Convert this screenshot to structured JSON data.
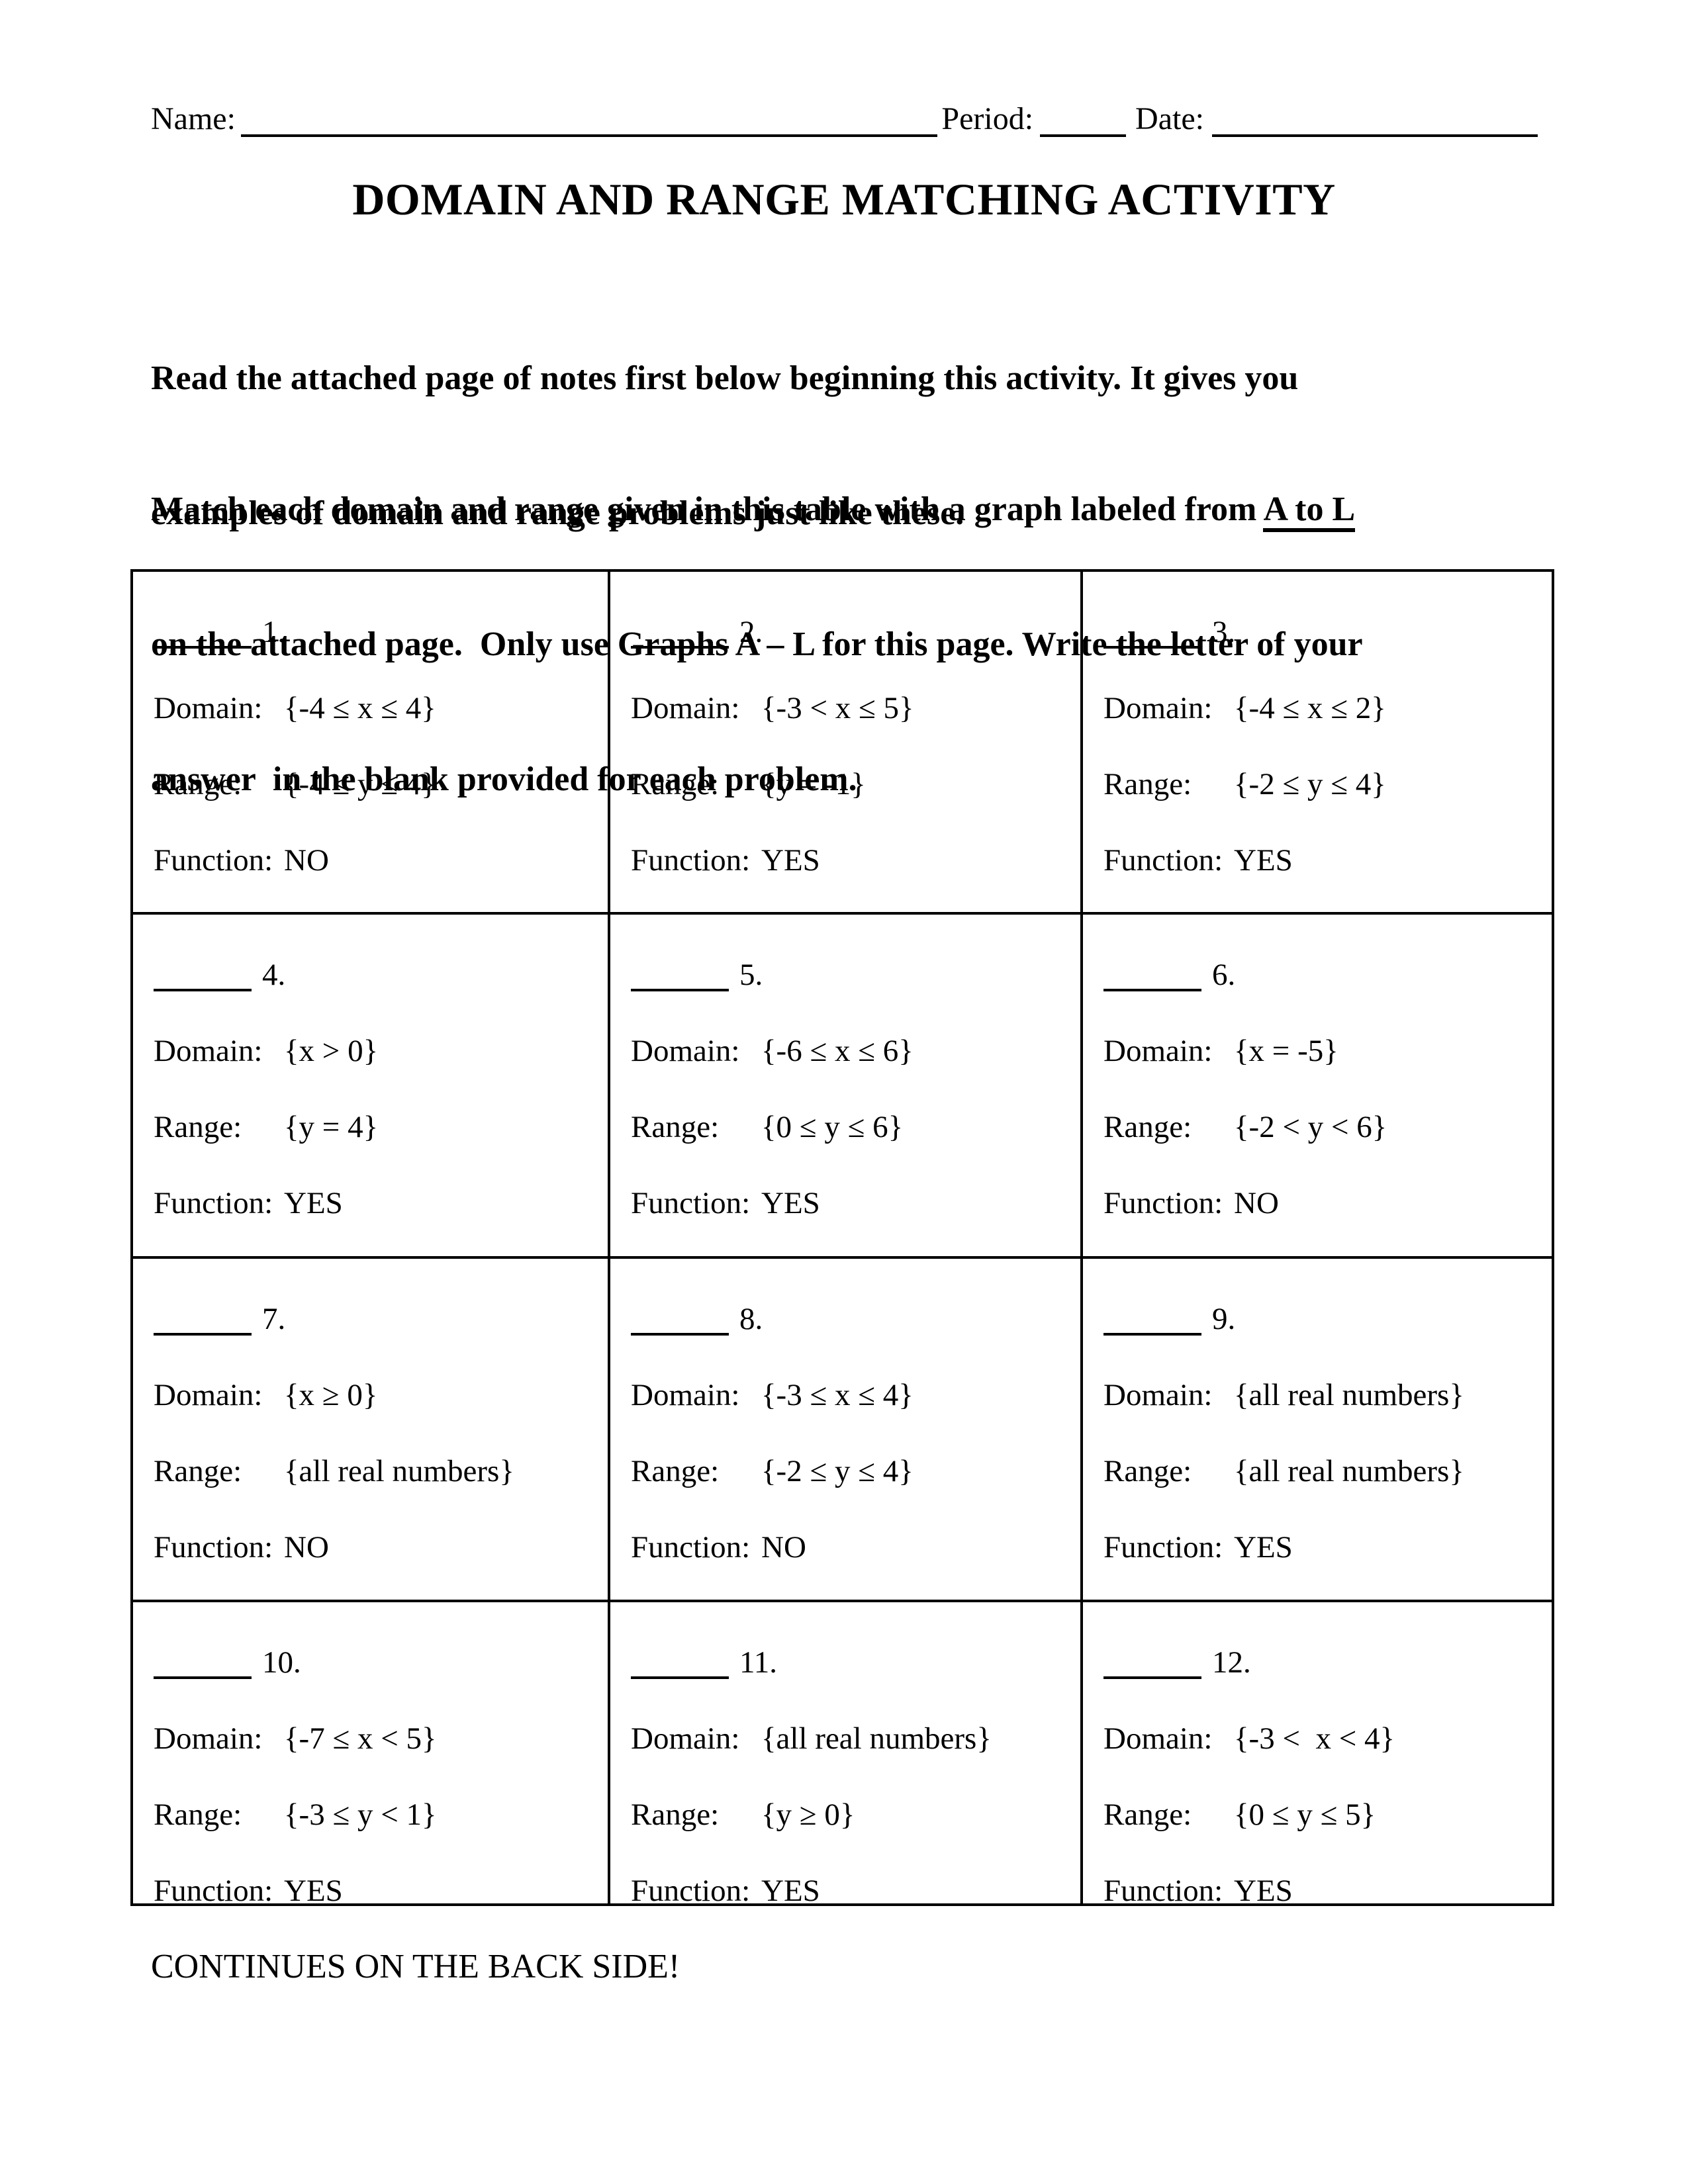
{
  "header": {
    "name_label": "Name:",
    "period_label": "Period:",
    "date_label": "Date:"
  },
  "title": "DOMAIN AND RANGE MATCHING ACTIVITY",
  "instructions": {
    "para1_lines": [
      "Read the attached page of notes first below beginning this activity. It gives you",
      "examples of domain and range problems just like these."
    ],
    "para2_line1_before": "Match each domain and range given in this table with a graph labeled from ",
    "para2_line1_underlined": "A to L",
    "para2_lines_rest": [
      "on the attached page.  Only use Graphs A – L for this page. Write the letter of your",
      "answer  in the blank provided for each problem."
    ]
  },
  "table": {
    "labels": {
      "domain": "Domain:",
      "range": "Range:",
      "function": "Function:"
    },
    "problems": [
      {
        "number": "1.",
        "domain": "{-4 ≤ x ≤ 4}",
        "range": "{-4 ≤ y ≤ 4}",
        "function": "NO"
      },
      {
        "number": "2.",
        "domain": "{-3 < x ≤ 5}",
        "range": "{y = -1}",
        "function": "YES"
      },
      {
        "number": "3.",
        "domain": "{-4 ≤ x ≤ 2}",
        "range": "{-2 ≤ y ≤ 4}",
        "function": "YES"
      },
      {
        "number": "4.",
        "domain": "{x > 0}",
        "range": "{y = 4}",
        "function": "YES"
      },
      {
        "number": "5.",
        "domain": "{-6 ≤ x ≤ 6}",
        "range": "{0 ≤ y ≤ 6}",
        "function": "YES"
      },
      {
        "number": "6.",
        "domain": "{x = -5}",
        "range": "{-2 < y < 6}",
        "function": "NO"
      },
      {
        "number": "7.",
        "domain": "{x ≥ 0}",
        "range": "{all real numbers}",
        "function": "NO"
      },
      {
        "number": "8.",
        "domain": "{-3 ≤ x ≤ 4}",
        "range": "{-2 ≤ y ≤ 4}",
        "function": "NO"
      },
      {
        "number": "9.",
        "domain": "{all real numbers}",
        "range": "{all real numbers}",
        "function": "YES"
      },
      {
        "number": "10.",
        "domain": "{-7 ≤ x < 5}",
        "range": "{-3 ≤ y < 1}",
        "function": "YES"
      },
      {
        "number": "11.",
        "domain": "{all real numbers}",
        "range": "{y ≥ 0}",
        "function": "YES"
      },
      {
        "number": "12.",
        "domain": "{-3 <  x < 4}",
        "range": "{0 ≤ y ≤ 5}",
        "function": "YES"
      }
    ]
  },
  "footer": "CONTINUES ON THE BACK SIDE!"
}
